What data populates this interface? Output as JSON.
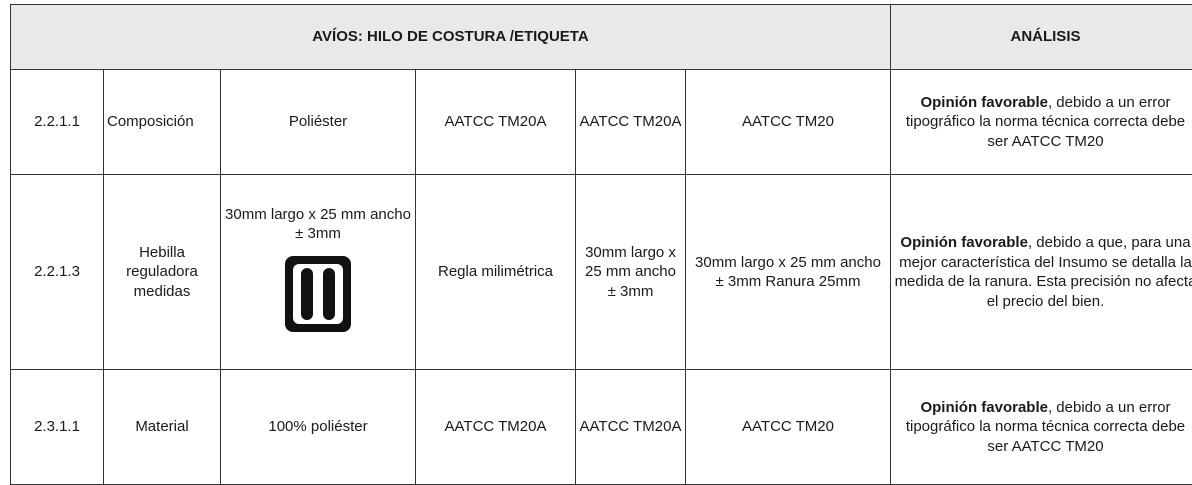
{
  "header": {
    "title": "AVÍOS: HILO DE COSTURA /ETIQUETA",
    "analysis": "ANÁLISIS"
  },
  "table": {
    "rows": [
      {
        "code": "2.2.1.1",
        "item": "Composición",
        "spec": "Poliéster",
        "method": "AATCC TM20A",
        "method_offered": "AATCC TM20A",
        "spec_offered": "AATCC TM20",
        "analysis_bold": "Opinión favorable",
        "analysis_text": ", debido a un error tipográfico la norma técnica correcta debe ser AATCC TM20"
      },
      {
        "code": "2.2.1.3",
        "item": "Hebilla reguladora medidas",
        "spec": "30mm largo x 25 mm ancho ± 3mm",
        "method": "Regla milimétrica",
        "method_offered": "30mm largo x 25 mm ancho ± 3mm",
        "spec_offered": "30mm largo x 25 mm ancho ± 3mm Ranura 25mm",
        "analysis_bold": "Opinión favorable",
        "analysis_text": ", debido a que, para una mejor característica del Insumo se detalla la medida de la ranura. Esta precisión no afecta el precio del bien."
      },
      {
        "code": "2.3.1.1",
        "item": "Material",
        "spec": "100% poliéster",
        "method": "AATCC TM20A",
        "method_offered": "AATCC TM20A",
        "spec_offered": "AATCC TM20",
        "analysis_bold": "Opinión favorable",
        "analysis_text": ", debido a un error tipográfico la norma técnica correcta debe ser AATCC TM20"
      }
    ]
  }
}
